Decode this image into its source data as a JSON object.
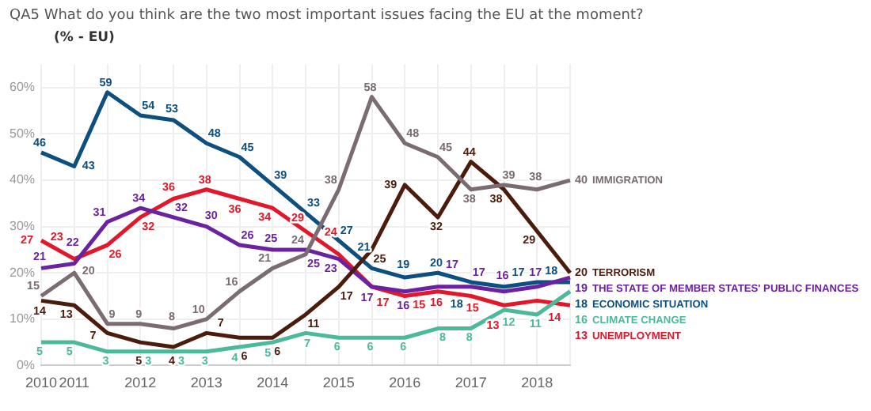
{
  "chart_data": {
    "type": "line",
    "title": "QA5 What do you think are the two most important issues facing the EU at the moment?",
    "subtitle": "(% - EU)",
    "categories": [
      "2010",
      "2011",
      null,
      "2012",
      null,
      "2013",
      null,
      "2014",
      null,
      "2015",
      null,
      "2016",
      null,
      "2017",
      null,
      "2018",
      null
    ],
    "series": [
      {
        "name": "IMMIGRATION",
        "color": "#7b6b72",
        "values": [
          15,
          20,
          9,
          9,
          8,
          10,
          16,
          21,
          24,
          38,
          58,
          48,
          45,
          38,
          39,
          38,
          40
        ]
      },
      {
        "name": "TERRORISM",
        "color": "#4b1b0c",
        "values": [
          14,
          13,
          7,
          5,
          4,
          7,
          6,
          6,
          11,
          17,
          25,
          39,
          32,
          44,
          38,
          29,
          20
        ]
      },
      {
        "name": "THE STATE OF MEMBER STATES' PUBLIC FINANCES",
        "color": "#6a22a0",
        "values": [
          21,
          22,
          31,
          34,
          32,
          30,
          26,
          25,
          25,
          23,
          17,
          16,
          17,
          17,
          16,
          17,
          19
        ]
      },
      {
        "name": "ECONOMIC SITUATION",
        "color": "#0d4f7e",
        "values": [
          46,
          43,
          59,
          54,
          53,
          48,
          45,
          39,
          33,
          27,
          21,
          19,
          20,
          18,
          17,
          18,
          18
        ]
      },
      {
        "name": "CLIMATE CHANGE",
        "color": "#4db99b",
        "values": [
          5,
          5,
          3,
          3,
          3,
          3,
          4,
          5,
          7,
          6,
          6,
          6,
          8,
          8,
          12,
          11,
          16
        ]
      },
      {
        "name": "UNEMPLOYMENT",
        "color": "#e3172a",
        "values": [
          27,
          23,
          26,
          32,
          36,
          38,
          36,
          34,
          29,
          24,
          17,
          15,
          16,
          15,
          13,
          14,
          13
        ]
      }
    ],
    "ylim": [
      0,
      65
    ],
    "yticks": [
      {
        "value": 0,
        "label": "0%"
      },
      {
        "value": 10,
        "label": "10%"
      },
      {
        "value": 20,
        "label": "20%"
      },
      {
        "value": 30,
        "label": "30%"
      },
      {
        "value": 40,
        "label": "40%"
      },
      {
        "value": 50,
        "label": "50%"
      },
      {
        "value": 60,
        "label": "60%"
      }
    ],
    "grid": true,
    "data_labels": true,
    "marker": "none",
    "line_style": "solid"
  }
}
